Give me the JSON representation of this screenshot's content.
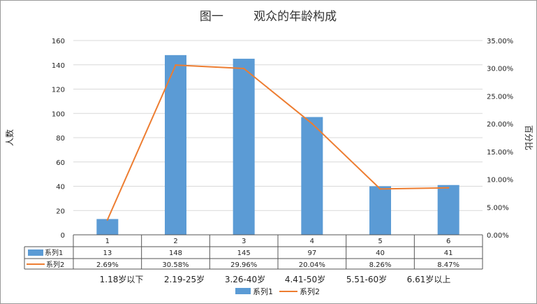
{
  "chart_data": {
    "type": "bar",
    "title": "图一        观众的年龄构成",
    "ylabel": "人数",
    "y2label": "百分比",
    "categories": [
      "1",
      "2",
      "3",
      "4",
      "5",
      "6"
    ],
    "category_labels": [
      "1.18岁以下",
      "2.19-25岁",
      "3.26-40岁",
      "4.41-50岁",
      "5.51-60岁",
      "6.61岁以上"
    ],
    "ylim": [
      0,
      160
    ],
    "yticks": [
      "0",
      "20",
      "40",
      "60",
      "80",
      "100",
      "120",
      "140",
      "160"
    ],
    "y2lim": [
      0,
      0.35
    ],
    "y2ticks": [
      "0.00%",
      "5.00%",
      "10.00%",
      "15.00%",
      "20.00%",
      "25.00%",
      "30.00%",
      "35.00%"
    ],
    "grid": true,
    "legend_position": "bottom",
    "series": [
      {
        "name": "系列1",
        "kind": "bar",
        "axis": "left",
        "color": "#5B9BD5",
        "values": [
          13,
          148,
          145,
          97,
          40,
          41
        ],
        "labels": [
          "13",
          "148",
          "145",
          "97",
          "40",
          "41"
        ]
      },
      {
        "name": "系列2",
        "kind": "line",
        "axis": "right",
        "color": "#ED7D31",
        "values": [
          0.0269,
          0.3058,
          0.2996,
          0.2004,
          0.0826,
          0.0847
        ],
        "labels": [
          "2.69%",
          "30.58%",
          "29.96%",
          "20.04%",
          "8.26%",
          "8.47%"
        ]
      }
    ]
  }
}
